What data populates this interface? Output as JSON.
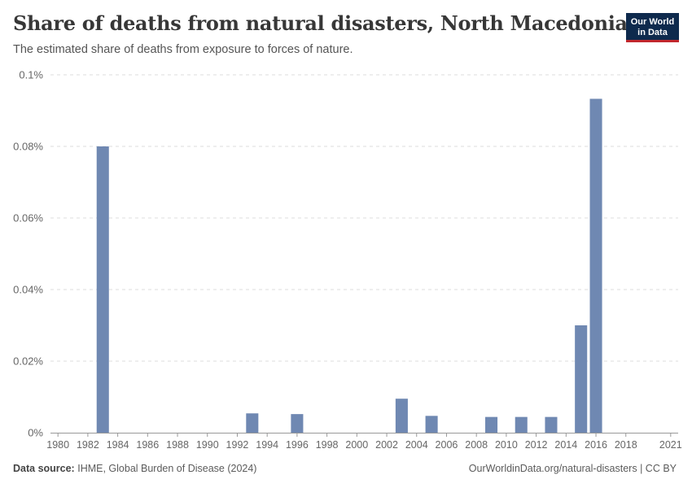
{
  "header": {
    "title": "Share of deaths from natural disasters, North Macedonia",
    "subtitle": "The estimated share of deaths from exposure to forces of nature."
  },
  "logo": {
    "line1": "Our World",
    "line2": "in Data"
  },
  "footer": {
    "source_label": "Data source:",
    "source_text": "IHME, Global Burden of Disease (2024)",
    "url_text": "OurWorldinData.org/natural-disasters | CC BY"
  },
  "colors": {
    "bar": "#6f88b2",
    "grid": "#dddddd",
    "axis": "#999999",
    "tick_text": "#666666"
  },
  "chart_data": {
    "type": "bar",
    "title": "Share of deaths from natural disasters, North Macedonia",
    "subtitle": "The estimated share of deaths from exposure to forces of nature.",
    "xlabel": "",
    "ylabel": "",
    "x_range": [
      1980,
      2021
    ],
    "ylim": [
      0,
      0.1
    ],
    "y_unit": "%",
    "y_ticks": [
      {
        "value": 0,
        "label": "0%"
      },
      {
        "value": 0.02,
        "label": "0.02%"
      },
      {
        "value": 0.04,
        "label": "0.04%"
      },
      {
        "value": 0.06,
        "label": "0.06%"
      },
      {
        "value": 0.08,
        "label": "0.08%"
      },
      {
        "value": 0.1,
        "label": "0.1%"
      }
    ],
    "x_ticks": [
      1980,
      1982,
      1984,
      1986,
      1988,
      1990,
      1992,
      1994,
      1996,
      1998,
      2000,
      2002,
      2004,
      2006,
      2008,
      2010,
      2012,
      2014,
      2016,
      2018,
      2021
    ],
    "grid": "horizontal dashed",
    "legend": "none",
    "series": [
      {
        "values": [
          {
            "x": 1983,
            "y": 0.08
          },
          {
            "x": 1993,
            "y": 0.0054
          },
          {
            "x": 1996,
            "y": 0.0052
          },
          {
            "x": 2003,
            "y": 0.0095
          },
          {
            "x": 2005,
            "y": 0.0047
          },
          {
            "x": 2009,
            "y": 0.0044
          },
          {
            "x": 2011,
            "y": 0.0044
          },
          {
            "x": 2013,
            "y": 0.0044
          },
          {
            "x": 2015,
            "y": 0.03
          },
          {
            "x": 2016,
            "y": 0.0933
          }
        ]
      }
    ]
  }
}
